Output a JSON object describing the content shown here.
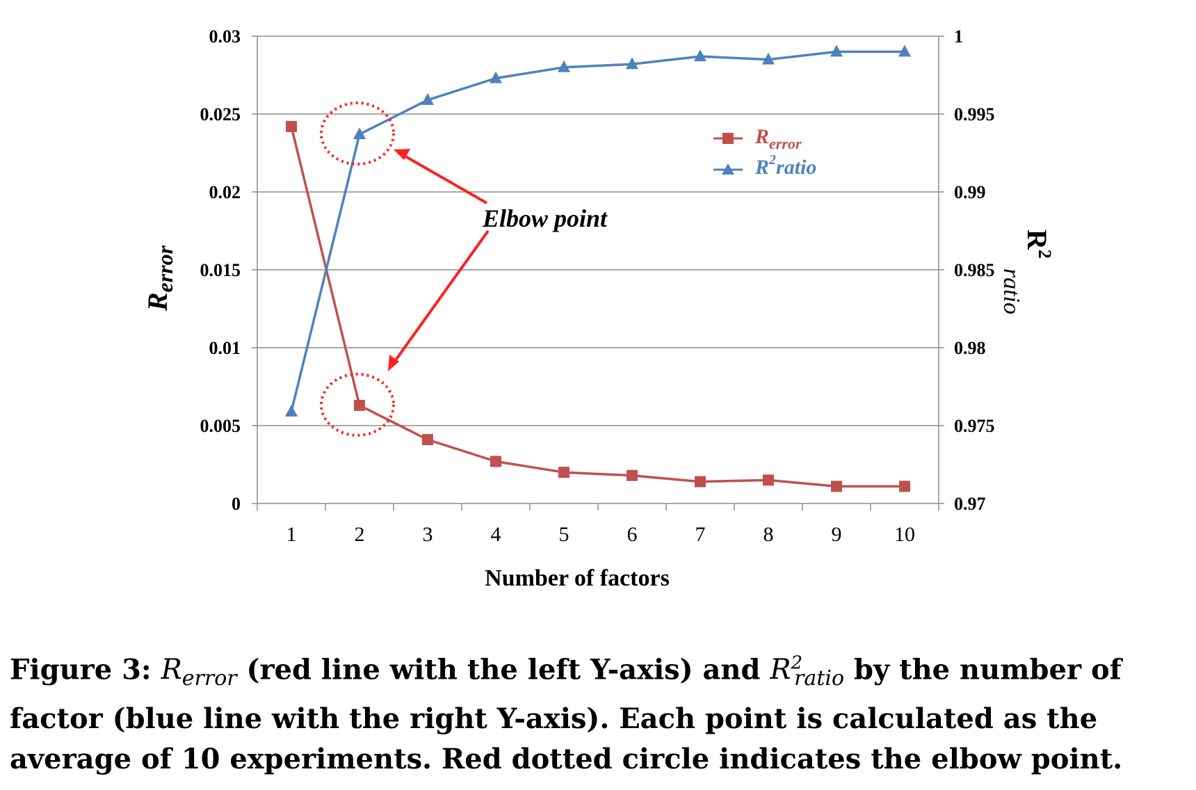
{
  "chart_data": {
    "type": "line",
    "categories": [
      1,
      2,
      3,
      4,
      5,
      6,
      7,
      8,
      9,
      10
    ],
    "xlabel": "Number of factors",
    "ylabel_left": "R",
    "ylabel_left_sub": "error",
    "ylabel_right": "R",
    "ylabel_right_sup": "2",
    "ylabel_right_sub": "ratio",
    "ylim_left": [
      0,
      0.03
    ],
    "ylim_right": [
      0.97,
      1
    ],
    "yticks_left": [
      "0",
      "0.005",
      "0.01",
      "0.015",
      "0.02",
      "0.025",
      "0.03"
    ],
    "yticks_right": [
      "0.97",
      "0.975",
      "0.98",
      "0.985",
      "0.99",
      "0.995",
      "1"
    ],
    "grid": true,
    "legend_position": "top-right",
    "series": [
      {
        "name": "R",
        "name_sub": "error",
        "axis": "left",
        "color": "#c0504d",
        "marker": "square",
        "values": [
          0.0242,
          0.0063,
          0.0041,
          0.0027,
          0.002,
          0.0018,
          0.0014,
          0.0015,
          0.0011,
          0.0011
        ]
      },
      {
        "name": "ratio",
        "name_prefix": "R",
        "name_sup": "2",
        "axis": "right",
        "color": "#4f81bd",
        "marker": "triangle",
        "values": [
          0.9759,
          0.9937,
          0.9959,
          0.9973,
          0.998,
          0.9982,
          0.9987,
          0.9985,
          0.999,
          0.999
        ]
      }
    ],
    "annotations": [
      {
        "text": "Elbow point",
        "color": "#ff2020",
        "targets": [
          2
        ]
      }
    ]
  },
  "caption": {
    "label": "Figure 3:",
    "r1": "R",
    "r1_sub": "error",
    "part1": "(red line with the left Y-axis) and",
    "r2": "R",
    "r2_sup": "2",
    "r2_sub": "ratio",
    "part2": "by the number of factor (blue line with the right Y-axis). Each point is calculated as the average of 10 experiments. Red dotted circle indicates the elbow point."
  }
}
